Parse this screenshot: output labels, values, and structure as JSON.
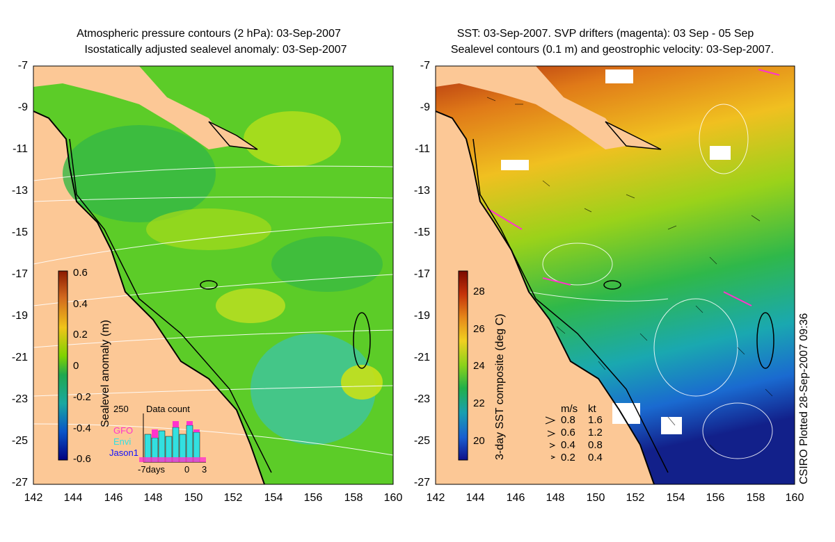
{
  "left_panel": {
    "title_line1": "Atmospheric pressure contours (2 hPa): 03-Sep-2007",
    "title_line2": "Isostatically adjusted sealevel anomaly: 03-Sep-2007",
    "y_ticks": [
      "-7",
      "-9",
      "-11",
      "-13",
      "-15",
      "-17",
      "-19",
      "-21",
      "-23",
      "-25",
      "-27"
    ],
    "x_ticks": [
      "142",
      "144",
      "146",
      "148",
      "150",
      "152",
      "154",
      "156",
      "158",
      "160"
    ],
    "colorbar": {
      "label": "Sealevel anomaly (m)",
      "ticks": [
        "0.6",
        "0.4",
        "0.2",
        "0",
        "-0.2",
        "-0.4",
        "-0.6"
      ],
      "colors_top_to_bottom": [
        "#8b1a00",
        "#d2691e",
        "#f0c419",
        "#7fd200",
        "#1fa84f",
        "#1aa8a0",
        "#0a55c8",
        "#000080"
      ]
    },
    "data_count": {
      "title": "Data count",
      "ymax": "250",
      "xticks": [
        "-7days",
        "0",
        "3"
      ],
      "legend": [
        {
          "name": "GFO",
          "color": "#ff33cc"
        },
        {
          "name": "Envi",
          "color": "#33e0e0"
        },
        {
          "name": "Jason1",
          "color": "#1010ff"
        }
      ]
    }
  },
  "right_panel": {
    "title_line1": "SST: 03-Sep-2007. SVP drifters (magenta): 03 Sep - 05 Sep",
    "title_line2": "Sealevel contours (0.1 m) and geostrophic velocity: 03-Sep-2007.",
    "y_ticks": [
      "-7",
      "-9",
      "-11",
      "-13",
      "-15",
      "-17",
      "-19",
      "-21",
      "-23",
      "-25",
      "-27"
    ],
    "x_ticks": [
      "142",
      "144",
      "146",
      "148",
      "150",
      "152",
      "154",
      "156",
      "158",
      "160"
    ],
    "colorbar": {
      "label": "3-day SST composite (deg C)",
      "ticks": [
        "28",
        "26",
        "24",
        "22",
        "20"
      ],
      "colors_top_to_bottom": [
        "#7a0a00",
        "#c4320a",
        "#e68a1a",
        "#f0d020",
        "#8ad21a",
        "#22b04a",
        "#1a9fb0",
        "#1a5fd0",
        "#10108a"
      ]
    },
    "velocity_key": {
      "header_ms": "m/s",
      "header_kt": "kt",
      "rows": [
        {
          "ms": "0.8",
          "kt": "1.6"
        },
        {
          "ms": "0.6",
          "kt": "1.2"
        },
        {
          "ms": "0.4",
          "kt": "0.8"
        },
        {
          "ms": "0.2",
          "kt": "0.4"
        }
      ]
    },
    "credit": "CSIRO Plotted 28-Sep-2007 09:36"
  }
}
